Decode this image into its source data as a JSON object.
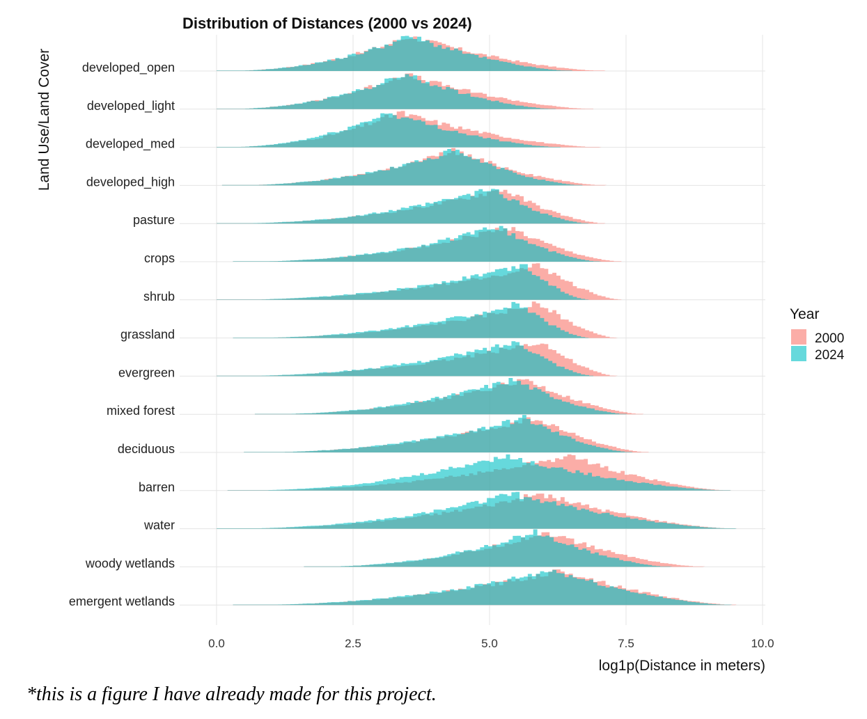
{
  "caption": "*this is a figure I have already made for this project.",
  "chart_data": {
    "type": "ridgeline-histogram",
    "title": "Distribution of Distances (2000 vs 2024)",
    "xlabel": "log1p(Distance in meters)",
    "ylabel": "Land Use/Land Cover",
    "xlim": [
      0,
      10
    ],
    "x_ticks": [
      0.0,
      2.5,
      5.0,
      7.5,
      10.0
    ],
    "x_tick_labels": [
      "0.0",
      "2.5",
      "5.0",
      "7.5",
      "10.0"
    ],
    "grid": true,
    "legend": {
      "title": "Year",
      "position": "right",
      "entries": [
        {
          "name": "2000",
          "color": "#F8766D"
        },
        {
          "name": "2024",
          "color": "#00BFC4"
        }
      ]
    },
    "categories": [
      "developed_open",
      "developed_light",
      "developed_med",
      "developed_high",
      "pasture",
      "crops",
      "shrub",
      "grassland",
      "evergreen",
      "mixed forest",
      "deciduous",
      "barren",
      "water",
      "woody wetlands",
      "emergent wetlands"
    ],
    "distribution_summary": {
      "note": "approximate mode and extent of each histogram, in log1p(meters)",
      "rows": [
        {
          "category": "developed_open",
          "2000": {
            "mode": 3.5,
            "min": 0.0,
            "max": 7.1
          },
          "2024": {
            "mode": 3.5,
            "min": 0.0,
            "max": 6.5
          }
        },
        {
          "category": "developed_light",
          "2000": {
            "mode": 3.4,
            "min": 0.0,
            "max": 6.9
          },
          "2024": {
            "mode": 3.4,
            "min": 0.0,
            "max": 6.2
          }
        },
        {
          "category": "developed_med",
          "2000": {
            "mode": 3.3,
            "min": 0.0,
            "max": 7.0
          },
          "2024": {
            "mode": 3.1,
            "min": 0.0,
            "max": 6.3
          }
        },
        {
          "category": "developed_high",
          "2000": {
            "mode": 4.3,
            "min": 0.1,
            "max": 7.1
          },
          "2024": {
            "mode": 4.3,
            "min": 0.1,
            "max": 6.7
          }
        },
        {
          "category": "pasture",
          "2000": {
            "mode": 5.2,
            "min": 0.0,
            "max": 7.1
          },
          "2024": {
            "mode": 5.0,
            "min": 0.0,
            "max": 6.8
          }
        },
        {
          "category": "crops",
          "2000": {
            "mode": 5.3,
            "min": 0.3,
            "max": 7.4
          },
          "2024": {
            "mode": 5.1,
            "min": 0.3,
            "max": 7.0
          }
        },
        {
          "category": "shrub",
          "2000": {
            "mode": 5.9,
            "min": 0.0,
            "max": 7.4
          },
          "2024": {
            "mode": 5.6,
            "min": 0.0,
            "max": 6.8
          }
        },
        {
          "category": "grassland",
          "2000": {
            "mode": 5.9,
            "min": 0.3,
            "max": 7.3
          },
          "2024": {
            "mode": 5.5,
            "min": 0.3,
            "max": 6.8
          }
        },
        {
          "category": "evergreen",
          "2000": {
            "mode": 5.9,
            "min": 0.0,
            "max": 7.3
          },
          "2024": {
            "mode": 5.5,
            "min": 0.0,
            "max": 6.9
          }
        },
        {
          "category": "mixed forest",
          "2000": {
            "mode": 5.6,
            "min": 0.7,
            "max": 7.8
          },
          "2024": {
            "mode": 5.4,
            "min": 0.7,
            "max": 7.5
          }
        },
        {
          "category": "deciduous",
          "2000": {
            "mode": 5.8,
            "min": 0.5,
            "max": 7.9
          },
          "2024": {
            "mode": 5.6,
            "min": 0.5,
            "max": 7.6
          }
        },
        {
          "category": "barren",
          "2000": {
            "mode": 6.4,
            "min": 0.2,
            "max": 9.4
          },
          "2024": {
            "mode": 5.2,
            "min": 0.2,
            "max": 9.4
          }
        },
        {
          "category": "water",
          "2000": {
            "mode": 5.9,
            "min": 0.0,
            "max": 9.5
          },
          "2024": {
            "mode": 5.4,
            "min": 0.0,
            "max": 9.5
          }
        },
        {
          "category": "woody wetlands",
          "2000": {
            "mode": 6.0,
            "min": 1.6,
            "max": 8.9
          },
          "2024": {
            "mode": 5.8,
            "min": 1.6,
            "max": 8.3
          }
        },
        {
          "category": "emergent wetlands",
          "2000": {
            "mode": 6.3,
            "min": 0.3,
            "max": 9.5
          },
          "2024": {
            "mode": 6.1,
            "min": 0.3,
            "max": 9.4
          }
        }
      ]
    },
    "colors": {
      "2000": "#F8766D",
      "2024": "#00BFC4",
      "grid": "#e4e4e4"
    }
  }
}
